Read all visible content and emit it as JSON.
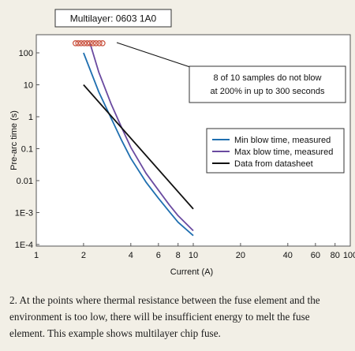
{
  "chart_data": {
    "type": "line",
    "title": "Multilayer: 0603 1A0",
    "xlabel": "Current (A)",
    "ylabel": "Pre-arc time (s)",
    "x_scale": "log",
    "y_scale": "log",
    "xlim": [
      1,
      100
    ],
    "ylim": [
      0.0001,
      100
    ],
    "grid": false,
    "x_ticks": [
      {
        "value": 1,
        "label": "1"
      },
      {
        "value": 2,
        "label": "2"
      },
      {
        "value": 4,
        "label": "4"
      },
      {
        "value": 6,
        "label": "6"
      },
      {
        "value": 8,
        "label": "8"
      },
      {
        "value": 10,
        "label": "10"
      },
      {
        "value": 20,
        "label": "20"
      },
      {
        "value": 40,
        "label": "40"
      },
      {
        "value": 60,
        "label": "60"
      },
      {
        "value": 80,
        "label": "80"
      },
      {
        "value": 100,
        "label": "100"
      }
    ],
    "y_ticks": [
      {
        "value": 100,
        "label": "100"
      },
      {
        "value": 10,
        "label": "10"
      },
      {
        "value": 1,
        "label": "1"
      },
      {
        "value": 0.1,
        "label": "0.1"
      },
      {
        "value": 0.01,
        "label": "0.01"
      },
      {
        "value": 0.001,
        "label": "1E-3"
      },
      {
        "value": 0.0001,
        "label": "1E-4"
      }
    ],
    "legend_position": "right",
    "series": [
      {
        "name": "Min blow time, measured",
        "color": "#1f6fb0",
        "x": [
          2,
          2.5,
          3,
          3.5,
          4,
          5,
          6,
          7,
          8,
          9,
          10
        ],
        "y": [
          100,
          6,
          0.9,
          0.18,
          0.05,
          0.009,
          0.0028,
          0.0011,
          0.0005,
          0.0003,
          0.00019
        ]
      },
      {
        "name": "Max blow time, measured",
        "color": "#6a4aa0",
        "x": [
          2.2,
          2.5,
          3,
          3.5,
          4,
          5,
          6,
          7,
          8,
          9,
          10
        ],
        "y": [
          200,
          25,
          2.5,
          0.45,
          0.11,
          0.017,
          0.005,
          0.0018,
          0.0008,
          0.00045,
          0.00027
        ]
      },
      {
        "name": "Data from datasheet",
        "color": "#111111",
        "x": [
          2,
          10
        ],
        "y": [
          10,
          0.0013
        ]
      }
    ],
    "samples": {
      "x": [
        1.78,
        1.85,
        1.93,
        2.02,
        2.11,
        2.2,
        2.3,
        2.4,
        2.52,
        2.64
      ],
      "y": 200,
      "color": "#c9503c"
    },
    "annotation": {
      "lines": [
        "8 of 10 samples do not blow",
        "at 200% in up to 300 seconds"
      ]
    }
  },
  "caption": "2. At the points where thermal resistance between the fuse element and the environment is too low, there will be insufficient energy to melt the fuse element. This example shows multilayer chip fuse."
}
